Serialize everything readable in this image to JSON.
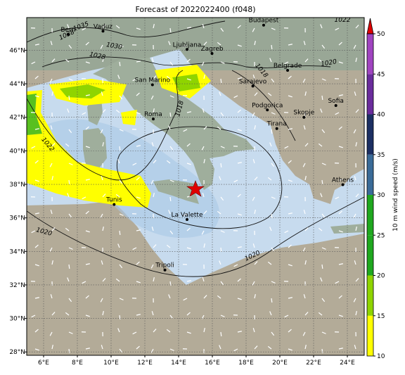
{
  "map": {
    "title": "Forecast of 2022022400 (f048)",
    "lon_lim": [
      5,
      25
    ],
    "lat_lim": [
      27.8,
      47.95
    ],
    "lon_ticks": [
      {
        "value": 6,
        "label": "6°E"
      },
      {
        "value": 8,
        "label": "8°E"
      },
      {
        "value": 10,
        "label": "10°E"
      },
      {
        "value": 12,
        "label": "12°E"
      },
      {
        "value": 14,
        "label": "14°E"
      },
      {
        "value": 16,
        "label": "16°E"
      },
      {
        "value": 18,
        "label": "18°E"
      },
      {
        "value": 20,
        "label": "20°E"
      },
      {
        "value": 22,
        "label": "22°E"
      },
      {
        "value": 24,
        "label": "24°E"
      }
    ],
    "lat_ticks": [
      {
        "value": 28,
        "label": "28°N"
      },
      {
        "value": 30,
        "label": "30°N"
      },
      {
        "value": 32,
        "label": "32°N"
      },
      {
        "value": 34,
        "label": "34°N"
      },
      {
        "value": 36,
        "label": "36°N"
      },
      {
        "value": 38,
        "label": "38°N"
      },
      {
        "value": 40,
        "label": "40°N"
      },
      {
        "value": 42,
        "label": "42°N"
      },
      {
        "value": 44,
        "label": "44°N"
      },
      {
        "value": 46,
        "label": "46°N"
      }
    ],
    "grid": true,
    "cities": [
      {
        "name": "Bern",
        "lon": 7.45,
        "lat": 46.95
      },
      {
        "name": "Vaduz",
        "lon": 9.52,
        "lat": 47.14
      },
      {
        "name": "Budapest",
        "lon": 19.04,
        "lat": 47.5
      },
      {
        "name": "Ljubljana",
        "lon": 14.5,
        "lat": 46.05
      },
      {
        "name": "Zagreb",
        "lon": 15.98,
        "lat": 45.81
      },
      {
        "name": "Belgrade",
        "lon": 20.46,
        "lat": 44.8
      },
      {
        "name": "San Marino",
        "lon": 12.45,
        "lat": 43.94
      },
      {
        "name": "Sarajevo",
        "lon": 18.4,
        "lat": 43.86
      },
      {
        "name": "Roma",
        "lon": 12.5,
        "lat": 41.9
      },
      {
        "name": "Podgorica",
        "lon": 19.26,
        "lat": 42.44
      },
      {
        "name": "Skopje",
        "lon": 21.43,
        "lat": 42.0
      },
      {
        "name": "Sofia",
        "lon": 23.32,
        "lat": 42.7
      },
      {
        "name": "Tirana",
        "lon": 19.82,
        "lat": 41.33
      },
      {
        "name": "Tunis",
        "lon": 10.18,
        "lat": 36.8
      },
      {
        "name": "La Valette",
        "lon": 14.5,
        "lat": 35.9
      },
      {
        "name": "Tripoli",
        "lon": 13.19,
        "lat": 32.89
      },
      {
        "name": "Athens",
        "lon": 23.73,
        "lat": 37.98
      }
    ],
    "isobar_labels": [
      "1035",
      "1038",
      "1030",
      "1028",
      "1022",
      "1020",
      "1018",
      "1018",
      "1022",
      "1020",
      "1020"
    ],
    "colorbar": {
      "label": "10 m wind speed (m/s)",
      "lim": [
        10,
        50
      ],
      "ticks": [
        10,
        15,
        20,
        25,
        30,
        35,
        40,
        45,
        50
      ],
      "colors": [
        "#ffff00",
        "#8fd400",
        "#1fa81f",
        "#1fa81f",
        "#3a6b98",
        "#1c2f63",
        "#6a2c9c",
        "#a044c0"
      ],
      "extend_color": "#e00000"
    }
  }
}
